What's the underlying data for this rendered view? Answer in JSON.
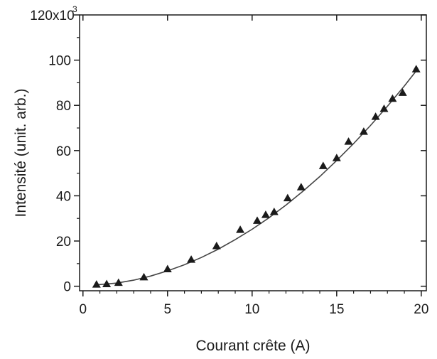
{
  "chart_data": {
    "type": "scatter",
    "title": "",
    "xlabel": "Courant crête (A)",
    "ylabel": "Intensité (unit. arb.)",
    "xlim": [
      -0.2,
      20.3
    ],
    "ylim": [
      -2,
      120
    ],
    "y_multiplier_label": "x10",
    "y_multiplier_exponent": "3",
    "x_ticks": [
      0,
      5,
      10,
      15,
      20
    ],
    "y_ticks": [
      0,
      20,
      40,
      60,
      80,
      100,
      120
    ],
    "y_tick_labels": [
      "0",
      "20",
      "40",
      "60",
      "80",
      "100",
      "120"
    ],
    "grid": false,
    "legend": "none",
    "series": [
      {
        "kind": "markers",
        "marker": "triangle-up",
        "x": [
          0.8,
          1.4,
          2.1,
          3.6,
          5.0,
          6.4,
          7.9,
          9.3,
          10.3,
          10.8,
          11.3,
          12.1,
          12.9,
          14.2,
          15.0,
          15.7,
          16.6,
          17.3,
          17.8,
          18.3,
          18.9,
          19.7
        ],
        "y": [
          0.8,
          1.0,
          1.6,
          4.0,
          7.6,
          11.8,
          17.8,
          25.0,
          29.0,
          31.6,
          32.9,
          39.0,
          43.8,
          53.2,
          56.7,
          64.0,
          68.4,
          75.0,
          78.5,
          83.0,
          85.6,
          96.0
        ]
      },
      {
        "kind": "fit",
        "x": [
          0.8,
          2,
          3,
          4,
          5,
          6,
          7,
          8,
          9,
          10,
          11,
          12,
          13,
          14,
          15,
          16,
          17,
          18,
          19,
          19.8
        ],
        "y": [
          0.6,
          1.4,
          2.7,
          4.5,
          6.8,
          9.5,
          12.7,
          16.4,
          20.6,
          25.2,
          30.3,
          35.9,
          42.0,
          48.5,
          55.6,
          63.1,
          71.1,
          79.6,
          88.6,
          96.2
        ]
      }
    ],
    "colors": {
      "markers": "#1a1a1a",
      "fit": "#444444",
      "axes": "#1a1a1a"
    }
  }
}
